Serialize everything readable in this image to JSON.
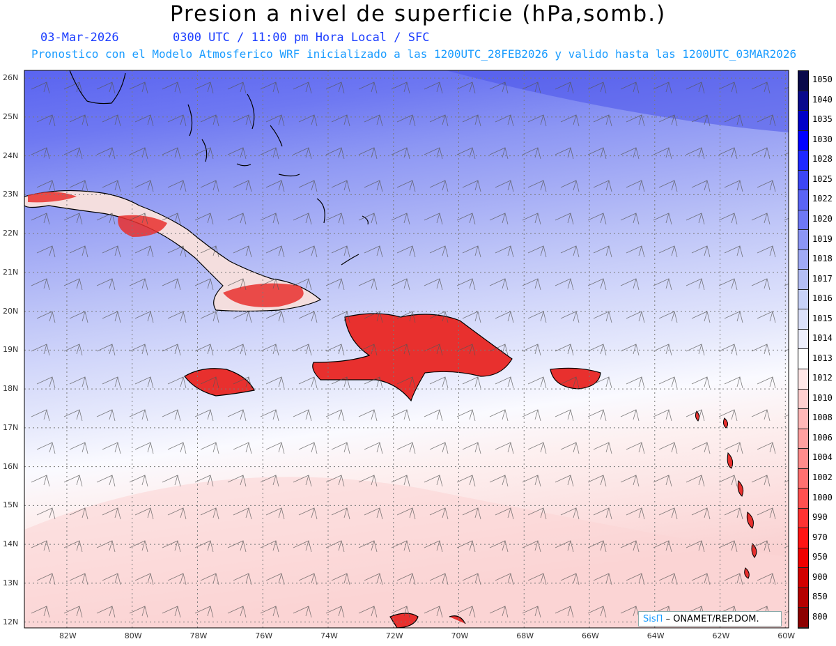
{
  "header": {
    "title": "Presion a nivel de superficie (hPa,somb.)",
    "date": "03-Mar-2026",
    "time_info": "0300 UTC / 11:00 pm Hora Local / SFC",
    "forecast_info": "Pronostico con el Modelo Atmosferico WRF inicializado a las 1200UTC_28FEB2026 y valido hasta las 1200UTC_03MAR2026"
  },
  "map": {
    "lat_labels": [
      "26N",
      "25N",
      "24N",
      "23N",
      "22N",
      "21N",
      "20N",
      "19N",
      "18N",
      "17N",
      "16N",
      "15N",
      "14N",
      "13N",
      "12N"
    ],
    "lon_labels": [
      "82W",
      "80W",
      "78W",
      "76W",
      "74W",
      "72W",
      "70W",
      "68W",
      "66W",
      "64W",
      "62W",
      "60W"
    ],
    "colors": {
      "land_high": "#e8302e",
      "gridline": "#7a7a7a",
      "coastline": "#000000"
    }
  },
  "colorbar": {
    "levels": [
      "1050",
      "1040",
      "1035",
      "1030",
      "1028",
      "1025",
      "1022",
      "1020",
      "1019",
      "1018",
      "1017",
      "1016",
      "1015",
      "1014",
      "1013",
      "1012",
      "1010",
      "1008",
      "1006",
      "1004",
      "1002",
      "1000",
      "990",
      "970",
      "950",
      "900",
      "850",
      "800"
    ],
    "colors": [
      "#0a0a4a",
      "#0a0a8c",
      "#0000c8",
      "#0000ff",
      "#1e28ff",
      "#3c46f5",
      "#5a64f5",
      "#6e78f5",
      "#8c96f5",
      "#a0aaf5",
      "#b4bef5",
      "#c8d2f8",
      "#dce1fa",
      "#eef0fd",
      "#ffffff",
      "#ffe8e8",
      "#ffd0d0",
      "#ffb8b8",
      "#ffa0a0",
      "#ff8c8c",
      "#ff7070",
      "#ff5050",
      "#ff3232",
      "#ff1414",
      "#f00000",
      "#d20000",
      "#b40000",
      "#8c0000"
    ]
  },
  "credit": {
    "brand": "SisΠ",
    "org": "– ONAMET/REP.DOM."
  }
}
